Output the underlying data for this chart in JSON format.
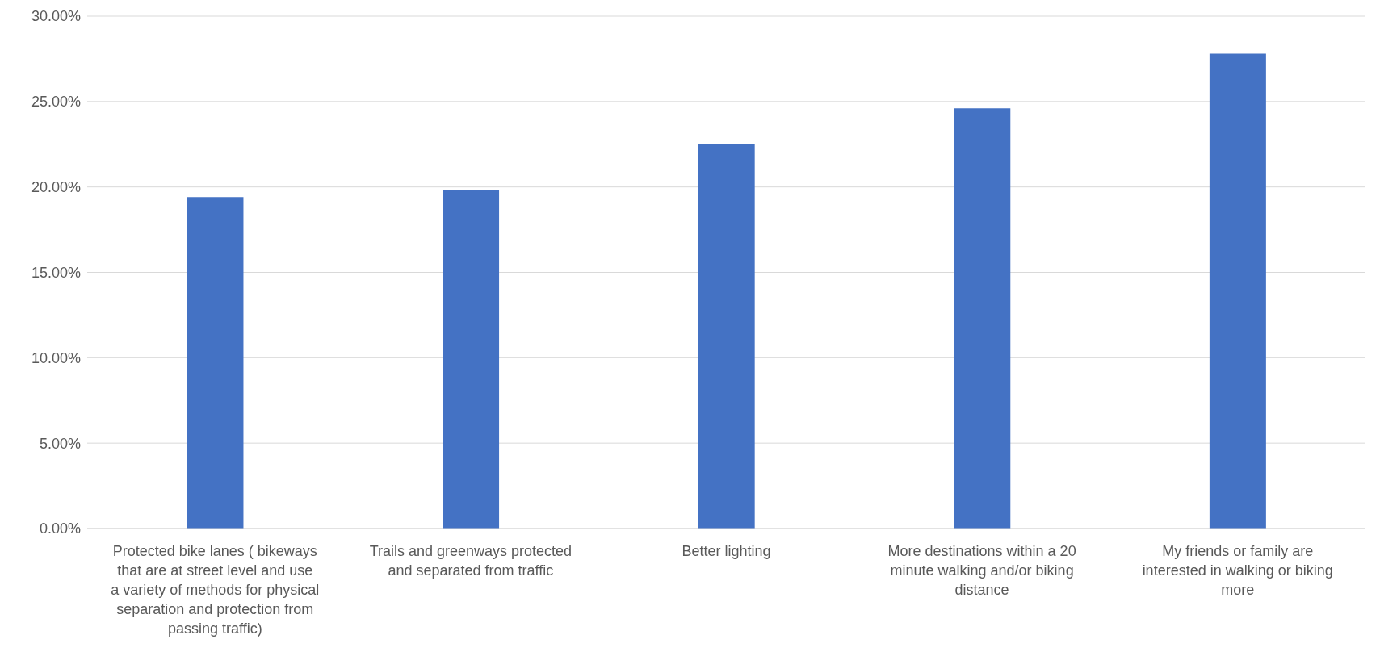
{
  "chart_data": {
    "type": "bar",
    "categories": [
      "Protected bike lanes ( bikeways that are at street level and use a variety of methods for physical separation and protection from passing traffic)",
      "Trails and greenways protected and separated from traffic",
      "Better lighting",
      "More destinations within a 20 minute walking and/or biking distance",
      "My friends or family are interested in walking or biking more"
    ],
    "values": [
      19.4,
      19.8,
      22.5,
      24.6,
      27.8
    ],
    "color": "#4472c4",
    "ylim": [
      0,
      30
    ],
    "yticks": [
      {
        "value": 0,
        "label": "0.00%"
      },
      {
        "value": 5,
        "label": "5.00%"
      },
      {
        "value": 10,
        "label": "10.00%"
      },
      {
        "value": 15,
        "label": "15.00%"
      },
      {
        "value": 20,
        "label": "20.00%"
      },
      {
        "value": 25,
        "label": "25.00%"
      },
      {
        "value": 30,
        "label": "30.00%"
      }
    ],
    "grid": "y"
  }
}
